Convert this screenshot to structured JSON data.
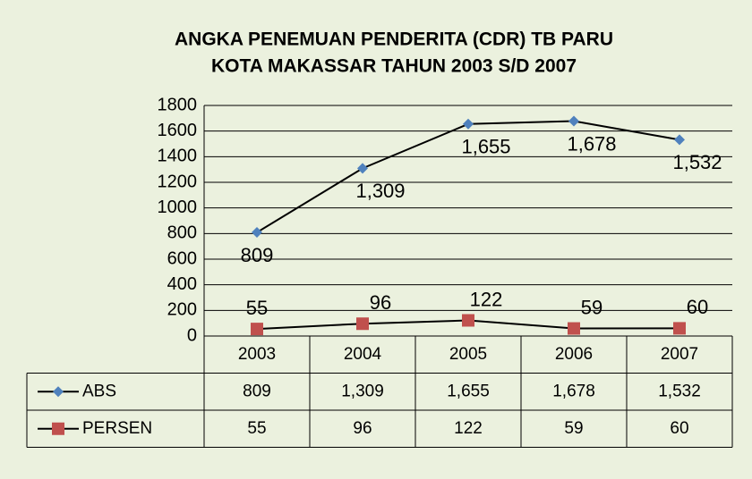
{
  "chart_data": {
    "type": "line",
    "title": [
      "ANGKA PENEMUAN PENDERITA (CDR) TB PARU",
      "KOTA MAKASSAR TAHUN 2003 S/D 2007"
    ],
    "categories": [
      "2003",
      "2004",
      "2005",
      "2006",
      "2007"
    ],
    "series": [
      {
        "name": "ABS",
        "color": "#4f81bd",
        "marker": "diamond",
        "values": [
          809,
          1309,
          1655,
          1678,
          1532
        ],
        "value_labels": [
          "809",
          "1,309",
          "1,655",
          "1,678",
          "1,532"
        ]
      },
      {
        "name": "PERSEN",
        "color": "#c0504d",
        "marker": "square",
        "values": [
          55,
          96,
          122,
          59,
          60
        ]
      }
    ],
    "line_color": "#000000",
    "ylim": [
      0,
      1800
    ],
    "yticks": [
      0,
      200,
      400,
      600,
      800,
      1000,
      1200,
      1400,
      1600,
      1800
    ],
    "grid": true,
    "data_table": true
  }
}
